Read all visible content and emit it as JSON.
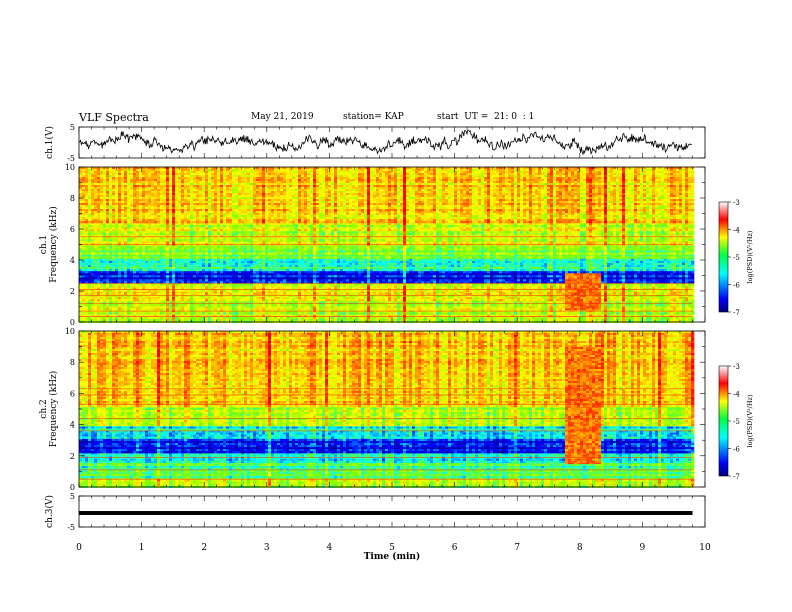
{
  "header": {
    "title": "VLF Spectra",
    "date": "May 21, 2019",
    "station": "station= KAP",
    "start": "start  UT =  21: 0  : 1"
  },
  "chart_data": [
    {
      "type": "line",
      "name": "ch1-waveform",
      "ylabel": "ch.1(V)",
      "ylim": [
        -5,
        5
      ],
      "yticks": [
        "5",
        "-5"
      ],
      "xlim": [
        0,
        10
      ],
      "x_extent_min": [
        0,
        9.8
      ],
      "y_envelope": [
        -4,
        4
      ]
    },
    {
      "type": "heatmap",
      "name": "ch1-spectrogram",
      "ylabel": "ch.1\nFrequency  (kHz)",
      "ylim": [
        0,
        10
      ],
      "yticks": [
        "0",
        "2",
        "4",
        "6",
        "8",
        "10"
      ],
      "xlim": [
        0,
        10
      ],
      "x_extent_min": [
        0,
        9.8
      ],
      "colorbar": {
        "label": "log(PSD)(V²/Hz)",
        "range": [
          -7,
          -3
        ],
        "ticks": [
          "-3",
          "-4",
          "-5",
          "-6",
          "-7"
        ]
      },
      "bands": [
        {
          "f": [
            0,
            0.6
          ],
          "level": -4.6
        },
        {
          "f": [
            0.6,
            1.4
          ],
          "level": -4.7
        },
        {
          "f": [
            1.4,
            2.0
          ],
          "level": -4.4
        },
        {
          "f": [
            2.0,
            2.6
          ],
          "level": -4.6
        },
        {
          "f": [
            2.6,
            3.4
          ],
          "level": -6.4
        },
        {
          "f": [
            3.4,
            4.2
          ],
          "level": -5.5
        },
        {
          "f": [
            4.2,
            5.0
          ],
          "level": -5.0
        },
        {
          "f": [
            5.0,
            6.5
          ],
          "level": -4.6
        },
        {
          "f": [
            6.5,
            10.0
          ],
          "level": -4.1
        }
      ],
      "burst_min": [
        7.75,
        8.3
      ],
      "burst_f_khz": [
        0.8,
        3.2
      ]
    },
    {
      "type": "heatmap",
      "name": "ch2-spectrogram",
      "ylabel": "ch.2\nFrequency  (kHz)",
      "ylim": [
        0,
        10
      ],
      "yticks": [
        "0",
        "2",
        "4",
        "6",
        "8",
        "10"
      ],
      "xlim": [
        0,
        10
      ],
      "x_extent_min": [
        0,
        9.8
      ],
      "colorbar": {
        "label": "log(PSD)(V²/Hz)",
        "range": [
          -7,
          -3
        ],
        "ticks": [
          "-3",
          "-4",
          "-5",
          "-6",
          "-7"
        ]
      },
      "bands": [
        {
          "f": [
            0,
            0.6
          ],
          "level": -4.8
        },
        {
          "f": [
            0.6,
            1.6
          ],
          "level": -5.3
        },
        {
          "f": [
            1.6,
            2.2
          ],
          "level": -5.6
        },
        {
          "f": [
            2.2,
            3.2
          ],
          "level": -6.4
        },
        {
          "f": [
            3.2,
            4.0
          ],
          "level": -5.6
        },
        {
          "f": [
            4.0,
            5.2
          ],
          "level": -4.8
        },
        {
          "f": [
            5.2,
            10.0
          ],
          "level": -4.1
        }
      ],
      "burst_min": [
        7.75,
        8.3
      ],
      "burst_f_khz": [
        1.5,
        9.0
      ]
    },
    {
      "type": "line",
      "name": "ch3-waveform",
      "ylabel": "ch.3(V)",
      "ylim": [
        -5,
        5
      ],
      "yticks": [
        "5",
        "-5"
      ],
      "xlim": [
        0,
        10
      ],
      "x_extent_min": [
        0,
        9.8
      ],
      "constant_value": -0.5
    }
  ],
  "xaxis": {
    "label": "Time  (min)",
    "ticks": [
      "0",
      "1",
      "2",
      "3",
      "4",
      "5",
      "6",
      "7",
      "8",
      "9",
      "10"
    ]
  },
  "colors": {
    "spectrum": [
      "#00008f",
      "#0000ff",
      "#00ffff",
      "#7fff00",
      "#ffff00",
      "#ff7f00",
      "#ff0000",
      "#ffffff"
    ]
  }
}
